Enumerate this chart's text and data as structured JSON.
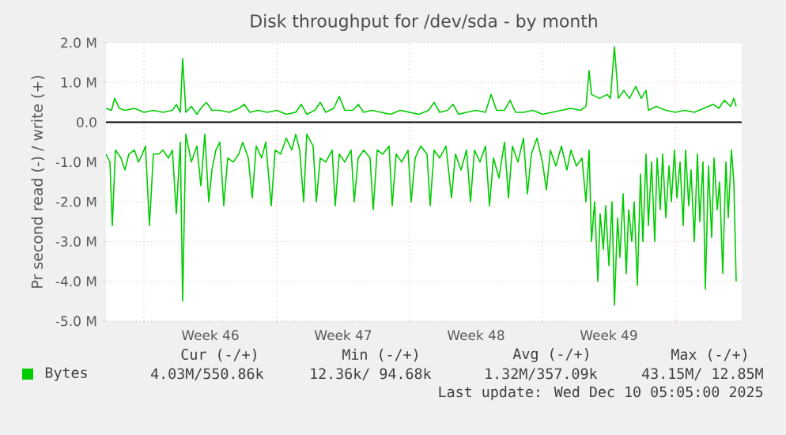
{
  "chart_data": {
    "type": "line",
    "title": "Disk throughput for /dev/sda - by month",
    "ylabel": "Pr second read (-) / write (+)",
    "xlim": [
      "2025-11-07T00:00",
      "2025-12-10T12:00"
    ],
    "xticks": [
      {
        "value": "2025-11-09",
        "label": null
      },
      {
        "value": "2025-11-12T12:00",
        "label": "Week 46"
      },
      {
        "value": "2025-11-16",
        "label": null
      },
      {
        "value": "2025-11-19T12:00",
        "label": "Week 47"
      },
      {
        "value": "2025-11-23",
        "label": null
      },
      {
        "value": "2025-11-26T12:00",
        "label": "Week 48"
      },
      {
        "value": "2025-11-30",
        "label": null
      },
      {
        "value": "2025-12-03T12:00",
        "label": "Week 49"
      },
      {
        "value": "2025-12-07",
        "label": null
      }
    ],
    "ylim": [
      -5,
      2
    ],
    "yticks": [
      {
        "value": -5,
        "label": "-5.0 M"
      },
      {
        "value": -4,
        "label": "-4.0 M"
      },
      {
        "value": -3,
        "label": "-3.0 M"
      },
      {
        "value": -2,
        "label": "-2.0 M"
      },
      {
        "value": -1,
        "label": "-1.0 M"
      },
      {
        "value": 0,
        "label": "0.0"
      },
      {
        "value": 1,
        "label": "1.0 M"
      },
      {
        "value": 2,
        "label": "2.0 M"
      }
    ],
    "grid": true,
    "legend": "bottom",
    "marker": "none",
    "line_style": "solid",
    "ref_lines": [
      {
        "axis": "y",
        "value": 0,
        "color": "#000000"
      }
    ],
    "series": [
      {
        "color": "#00cc00",
        "x": [
          "2025-11-07T00:00",
          "2025-11-07T05:00",
          "2025-11-07T08:00",
          "2025-11-07T12:00",
          "2025-11-07T19:00",
          "2025-11-08T00:00",
          "2025-11-08T05:00",
          "2025-11-08T12:00",
          "2025-11-08T17:00",
          "2025-11-08T22:00",
          "2025-11-09T02:00",
          "2025-11-09T07:00",
          "2025-11-09T12:00",
          "2025-11-09T19:00",
          "2025-11-10T00:00",
          "2025-11-10T07:00",
          "2025-11-10T12:00",
          "2025-11-10T17:00",
          "2025-11-10T22:00",
          "2025-11-11T01:00",
          "2025-11-11T05:00",
          "2025-11-11T12:00",
          "2025-11-11T19:00",
          "2025-11-12T00:00",
          "2025-11-12T05:00",
          "2025-11-12T10:00",
          "2025-11-12T14:00",
          "2025-11-12T19:00",
          "2025-11-13T00:00",
          "2025-11-13T05:00",
          "2025-11-13T10:00",
          "2025-11-13T17:00",
          "2025-11-14T00:00",
          "2025-11-14T05:00",
          "2025-11-14T12:00",
          "2025-11-14T17:00",
          "2025-11-14T22:00",
          "2025-11-15T05:00",
          "2025-11-15T10:00",
          "2025-11-15T17:00",
          "2025-11-15T22:00",
          "2025-11-16T05:00",
          "2025-11-16T12:00",
          "2025-11-16T19:00",
          "2025-11-17T00:00",
          "2025-11-17T05:00",
          "2025-11-17T10:00",
          "2025-11-17T14:00",
          "2025-11-17T22:00",
          "2025-11-18T02:00",
          "2025-11-18T07:00",
          "2025-11-18T14:00",
          "2025-11-18T22:00",
          "2025-11-19T02:00",
          "2025-11-19T07:00",
          "2025-11-19T14:00",
          "2025-11-19T22:00",
          "2025-11-20T02:00",
          "2025-11-20T07:00",
          "2025-11-20T14:00",
          "2025-11-20T22:00",
          "2025-11-21T02:00",
          "2025-11-21T07:00",
          "2025-11-21T14:00",
          "2025-11-21T22:00",
          "2025-11-22T02:00",
          "2025-11-22T07:00",
          "2025-11-22T14:00",
          "2025-11-22T22:00",
          "2025-11-23T02:00",
          "2025-11-23T07:00",
          "2025-11-23T14:00",
          "2025-11-23T22:00",
          "2025-11-24T02:00",
          "2025-11-24T07:00",
          "2025-11-24T14:00",
          "2025-11-24T22:00",
          "2025-11-25T05:00",
          "2025-11-25T10:00",
          "2025-11-25T17:00",
          "2025-11-26T00:00",
          "2025-11-26T05:00",
          "2025-11-26T10:00",
          "2025-11-26T17:00",
          "2025-11-27T00:00",
          "2025-11-27T05:00",
          "2025-11-27T10:00",
          "2025-11-27T17:00",
          "2025-11-28T00:00",
          "2025-11-28T05:00",
          "2025-11-28T10:00",
          "2025-11-28T17:00",
          "2025-11-29T00:00",
          "2025-11-29T05:00",
          "2025-11-29T10:00",
          "2025-11-29T17:00",
          "2025-11-30T00:00",
          "2025-11-30T05:00",
          "2025-11-30T10:00",
          "2025-11-30T17:00",
          "2025-12-01T00:00",
          "2025-12-01T07:00",
          "2025-12-01T12:00",
          "2025-12-01T19:00",
          "2025-12-02T02:00",
          "2025-12-02T07:00",
          "2025-12-02T11:00",
          "2025-12-02T14:00",
          "2025-12-02T18:00",
          "2025-12-02T22:00",
          "2025-12-03T01:00",
          "2025-12-03T05:00",
          "2025-12-03T08:00",
          "2025-12-03T12:00",
          "2025-12-03T16:00",
          "2025-12-03T19:00",
          "2025-12-03T23:00",
          "2025-12-04T02:00",
          "2025-12-04T06:00",
          "2025-12-04T10:00",
          "2025-12-04T13:00",
          "2025-12-04T17:00",
          "2025-12-04T20:00",
          "2025-12-05T00:00",
          "2025-12-05T04:00",
          "2025-12-05T07:00",
          "2025-12-05T11:00",
          "2025-12-05T14:00",
          "2025-12-05T18:00",
          "2025-12-05T22:00",
          "2025-12-06T01:00",
          "2025-12-06T05:00",
          "2025-12-06T08:00",
          "2025-12-06T12:00",
          "2025-12-06T16:00",
          "2025-12-06T19:00",
          "2025-12-06T23:00",
          "2025-12-07T02:00",
          "2025-12-07T06:00",
          "2025-12-07T10:00",
          "2025-12-07T13:00",
          "2025-12-07T17:00",
          "2025-12-07T20:00",
          "2025-12-08T00:00",
          "2025-12-08T04:00",
          "2025-12-08T07:00",
          "2025-12-08T11:00",
          "2025-12-08T14:00",
          "2025-12-08T18:00",
          "2025-12-08T22:00",
          "2025-12-09T01:00",
          "2025-12-09T05:00",
          "2025-12-09T08:00",
          "2025-12-09T12:00",
          "2025-12-09T16:00",
          "2025-12-09T19:00",
          "2025-12-09T23:00",
          "2025-12-10T02:00",
          "2025-12-10T05:00"
        ],
        "values": [
          -0.8,
          -1.0,
          -2.6,
          -0.7,
          -0.9,
          -1.2,
          -0.8,
          -0.7,
          -1.0,
          -0.8,
          -0.6,
          -2.6,
          -0.8,
          -0.8,
          -0.7,
          -0.9,
          -0.7,
          -2.3,
          -0.5,
          -4.5,
          -0.3,
          -1.0,
          -0.6,
          -1.6,
          -0.3,
          -2.0,
          -1.2,
          -0.7,
          -0.5,
          -2.1,
          -0.9,
          -1.0,
          -0.8,
          -0.5,
          -0.9,
          -1.9,
          -0.6,
          -0.9,
          -0.5,
          -2.1,
          -0.7,
          -0.8,
          -0.4,
          -0.7,
          -0.3,
          -0.7,
          -2.0,
          -0.3,
          -0.6,
          -2.0,
          -0.9,
          -1.0,
          -0.7,
          -2.1,
          -0.8,
          -1.0,
          -0.7,
          -2.0,
          -0.9,
          -0.7,
          -0.9,
          -2.2,
          -0.7,
          -0.8,
          -0.6,
          -2.1,
          -0.8,
          -1.0,
          -0.7,
          -2.0,
          -0.9,
          -0.6,
          -0.8,
          -2.1,
          -0.7,
          -0.9,
          -0.6,
          -1.9,
          -0.8,
          -1.2,
          -0.7,
          -2.0,
          -0.7,
          -1.0,
          -0.6,
          -2.1,
          -0.9,
          -1.4,
          -0.5,
          -1.9,
          -0.6,
          -1.0,
          -0.4,
          -1.8,
          -0.8,
          -0.4,
          -1.0,
          -1.7,
          -0.7,
          -1.1,
          -0.6,
          -1.2,
          -0.7,
          -1.1,
          -0.9,
          -2.0,
          -0.7,
          -3.0,
          -2.0,
          -4.0,
          -2.3,
          -3.2,
          -2.1,
          -3.6,
          -2.0,
          -4.6,
          -2.4,
          -3.4,
          -1.8,
          -3.8,
          -2.2,
          -3.0,
          -2.0,
          -4.1,
          -1.3,
          -3.0,
          -0.8,
          -2.6,
          -1.0,
          -3.0,
          -0.9,
          -2.2,
          -0.8,
          -2.4,
          -1.1,
          -2.0,
          -0.7,
          -1.9,
          -1.0,
          -2.6,
          -0.7,
          -2.1,
          -1.2,
          -3.0,
          -0.8,
          -2.5,
          -1.0,
          -4.2,
          -1.1,
          -2.9,
          -0.9,
          -2.2,
          -1.5,
          -3.8,
          -1.0,
          -2.4,
          -0.7,
          -1.5,
          -4.0
        ]
      },
      {
        "name": "Bytes",
        "color": "#00cc00",
        "x": [
          "2025-11-07T00:00",
          "2025-11-07T07:00",
          "2025-11-07T11:00",
          "2025-11-07T17:00",
          "2025-11-08T00:00",
          "2025-11-08T12:00",
          "2025-11-09T00:00",
          "2025-11-09T12:00",
          "2025-11-10T00:00",
          "2025-11-10T12:00",
          "2025-11-10T17:00",
          "2025-11-10T22:00",
          "2025-11-11T01:00",
          "2025-11-11T05:00",
          "2025-11-11T12:00",
          "2025-11-11T19:00",
          "2025-11-12T00:00",
          "2025-11-12T07:00",
          "2025-11-12T14:00",
          "2025-11-13T00:00",
          "2025-11-13T12:00",
          "2025-11-14T00:00",
          "2025-11-14T07:00",
          "2025-11-14T14:00",
          "2025-11-15T00:00",
          "2025-11-15T12:00",
          "2025-11-16T00:00",
          "2025-11-16T12:00",
          "2025-11-17T00:00",
          "2025-11-17T07:00",
          "2025-11-17T14:00",
          "2025-11-18T00:00",
          "2025-11-18T07:00",
          "2025-11-18T14:00",
          "2025-11-19T00:00",
          "2025-11-19T07:00",
          "2025-11-19T14:00",
          "2025-11-20T00:00",
          "2025-11-20T07:00",
          "2025-11-20T14:00",
          "2025-11-21T00:00",
          "2025-11-21T12:00",
          "2025-11-22T00:00",
          "2025-11-22T12:00",
          "2025-11-23T00:00",
          "2025-11-23T12:00",
          "2025-11-24T00:00",
          "2025-11-24T07:00",
          "2025-11-24T14:00",
          "2025-11-25T00:00",
          "2025-11-25T07:00",
          "2025-11-25T14:00",
          "2025-11-26T00:00",
          "2025-11-26T12:00",
          "2025-11-27T00:00",
          "2025-11-27T07:00",
          "2025-11-27T14:00",
          "2025-11-28T00:00",
          "2025-11-28T07:00",
          "2025-11-28T14:00",
          "2025-11-29T00:00",
          "2025-11-29T12:00",
          "2025-11-30T00:00",
          "2025-11-30T12:00",
          "2025-12-01T00:00",
          "2025-12-01T12:00",
          "2025-12-02T00:00",
          "2025-12-02T07:00",
          "2025-12-02T11:00",
          "2025-12-02T14:00",
          "2025-12-03T00:00",
          "2025-12-03T10:00",
          "2025-12-03T14:00",
          "2025-12-03T19:00",
          "2025-12-04T00:00",
          "2025-12-04T07:00",
          "2025-12-04T14:00",
          "2025-12-04T22:00",
          "2025-12-05T05:00",
          "2025-12-05T11:00",
          "2025-12-05T14:00",
          "2025-12-06T00:00",
          "2025-12-06T12:00",
          "2025-12-07T00:00",
          "2025-12-07T12:00",
          "2025-12-08T00:00",
          "2025-12-08T12:00",
          "2025-12-09T00:00",
          "2025-12-09T07:00",
          "2025-12-09T14:00",
          "2025-12-09T22:00",
          "2025-12-10T02:00",
          "2025-12-10T05:00"
        ],
        "values": [
          0.35,
          0.3,
          0.6,
          0.35,
          0.3,
          0.35,
          0.25,
          0.3,
          0.25,
          0.3,
          0.45,
          0.25,
          1.6,
          0.25,
          0.4,
          0.2,
          0.35,
          0.5,
          0.3,
          0.3,
          0.25,
          0.35,
          0.45,
          0.25,
          0.3,
          0.25,
          0.3,
          0.2,
          0.25,
          0.45,
          0.2,
          0.3,
          0.5,
          0.25,
          0.35,
          0.65,
          0.3,
          0.3,
          0.45,
          0.25,
          0.3,
          0.25,
          0.2,
          0.3,
          0.25,
          0.2,
          0.3,
          0.5,
          0.25,
          0.3,
          0.45,
          0.2,
          0.25,
          0.3,
          0.25,
          0.7,
          0.3,
          0.3,
          0.55,
          0.25,
          0.25,
          0.3,
          0.2,
          0.25,
          0.3,
          0.35,
          0.3,
          0.4,
          1.3,
          0.7,
          0.6,
          0.7,
          0.6,
          1.9,
          0.6,
          0.8,
          0.6,
          0.9,
          0.6,
          0.8,
          0.3,
          0.4,
          0.3,
          0.25,
          0.3,
          0.25,
          0.35,
          0.45,
          0.35,
          0.55,
          0.4,
          0.6,
          0.4
        ]
      }
    ],
    "annotations": [
      "Cur (-/+)",
      "Min (-/+)",
      "Avg (-/+)",
      "Max (-/+)",
      "4.03M/550.86k",
      "12.36k/ 94.68k",
      "1.32M/357.09k",
      "43.15M/ 12.85M",
      "Last update: Wed Dec 10 05:05:00 2025"
    ]
  }
}
